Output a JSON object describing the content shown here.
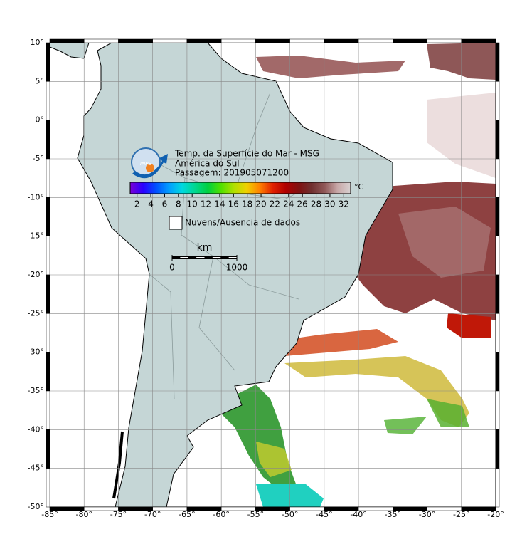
{
  "map": {
    "lon_range": [
      -85,
      -20
    ],
    "lat_range": [
      -50,
      10
    ],
    "lon_ticks": [
      {
        "value": -85,
        "label": "-85°"
      },
      {
        "value": -80,
        "label": "-80°"
      },
      {
        "value": -75,
        "label": "-75°"
      },
      {
        "value": -70,
        "label": "-70°"
      },
      {
        "value": -65,
        "label": "-65°"
      },
      {
        "value": -60,
        "label": "-60°"
      },
      {
        "value": -55,
        "label": "-55°"
      },
      {
        "value": -50,
        "label": "-50°"
      },
      {
        "value": -45,
        "label": "-45°"
      },
      {
        "value": -40,
        "label": "-40°"
      },
      {
        "value": -35,
        "label": "-35°"
      },
      {
        "value": -30,
        "label": "-30°"
      },
      {
        "value": -25,
        "label": "-25°"
      },
      {
        "value": -20,
        "label": "-20°"
      }
    ],
    "lat_ticks": [
      {
        "value": 10,
        "label": "10°"
      },
      {
        "value": 5,
        "label": "5°"
      },
      {
        "value": 0,
        "label": "0°"
      },
      {
        "value": -5,
        "label": "-5°"
      },
      {
        "value": -10,
        "label": "-10°"
      },
      {
        "value": -15,
        "label": "-15°"
      },
      {
        "value": -20,
        "label": "-20°"
      },
      {
        "value": -25,
        "label": "-25°"
      },
      {
        "value": -30,
        "label": "-30°"
      },
      {
        "value": -35,
        "label": "-35°"
      },
      {
        "value": -40,
        "label": "-40°"
      },
      {
        "value": -45,
        "label": "-45°"
      },
      {
        "value": -50,
        "label": "-50°"
      }
    ]
  },
  "header": {
    "logo": "INPE",
    "title": "Temp. da Superfície do Mar - MSG",
    "region": "América do Sul",
    "pass": "Passagem: 201905071200"
  },
  "colorbar": {
    "range": [
      1,
      33
    ],
    "ticks": [
      2,
      4,
      6,
      8,
      10,
      12,
      14,
      16,
      18,
      20,
      22,
      24,
      26,
      28,
      30,
      32
    ],
    "unit": "°C",
    "colors": [
      "#7a00d6",
      "#2a00ff",
      "#0050ff",
      "#009dff",
      "#00d8e0",
      "#00d890",
      "#00d040",
      "#50e000",
      "#b0e000",
      "#f0d000",
      "#ff8000",
      "#e02000",
      "#b00000",
      "#801010",
      "#703030",
      "#905858",
      "#c8a8a8",
      "#d8d0d0"
    ]
  },
  "legend": {
    "nodata": "Nuvens/Ausencia de dados"
  },
  "scale": {
    "unit": "km",
    "ticks": [
      0,
      1000
    ]
  }
}
